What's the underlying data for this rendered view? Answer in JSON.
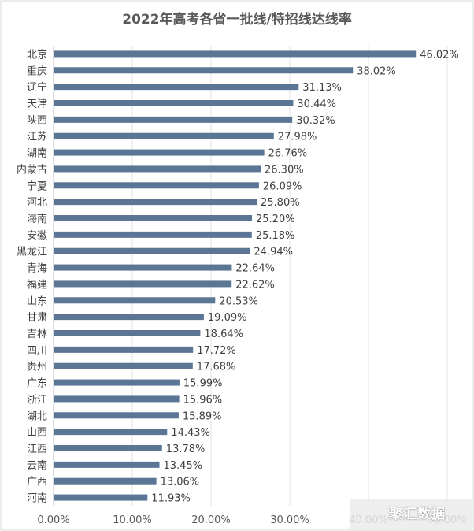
{
  "chart_data": {
    "type": "bar",
    "orientation": "horizontal",
    "title": "2022年高考各省一批线/特招线达线率",
    "categories": [
      "北京",
      "重庆",
      "辽宁",
      "天津",
      "陕西",
      "江苏",
      "湖南",
      "内蒙古",
      "宁夏",
      "河北",
      "海南",
      "安徽",
      "黑龙江",
      "青海",
      "福建",
      "山东",
      "甘肃",
      "吉林",
      "四川",
      "贵州",
      "广东",
      "浙江",
      "湖北",
      "山西",
      "江西",
      "云南",
      "广西",
      "河南"
    ],
    "values": [
      46.02,
      38.02,
      31.13,
      30.44,
      30.32,
      27.98,
      26.76,
      26.3,
      26.09,
      25.8,
      25.2,
      25.18,
      24.94,
      22.64,
      22.62,
      20.53,
      19.09,
      18.64,
      17.72,
      17.68,
      15.99,
      15.96,
      15.89,
      14.43,
      13.78,
      13.45,
      13.06,
      11.93
    ],
    "value_labels": [
      "46.02%",
      "38.02%",
      "31.13%",
      "30.44%",
      "30.32%",
      "27.98%",
      "26.76%",
      "26.30%",
      "26.09%",
      "25.80%",
      "25.20%",
      "25.18%",
      "24.94%",
      "22.64%",
      "22.62%",
      "20.53%",
      "19.09%",
      "18.64%",
      "17.72%",
      "17.68%",
      "15.99%",
      "15.96%",
      "15.89%",
      "14.43%",
      "13.78%",
      "13.45%",
      "13.06%",
      "11.93%"
    ],
    "x_ticks": [
      "0.00%",
      "10.00%",
      "20.00%",
      "30.00%",
      "40.00%",
      "50.00%"
    ],
    "xlim": [
      0,
      50
    ],
    "xlabel": "",
    "ylabel": "",
    "grid": "vertical",
    "legend": "none",
    "bar_color": "#5b7595"
  },
  "watermark": {
    "text": "聚汇数据"
  }
}
